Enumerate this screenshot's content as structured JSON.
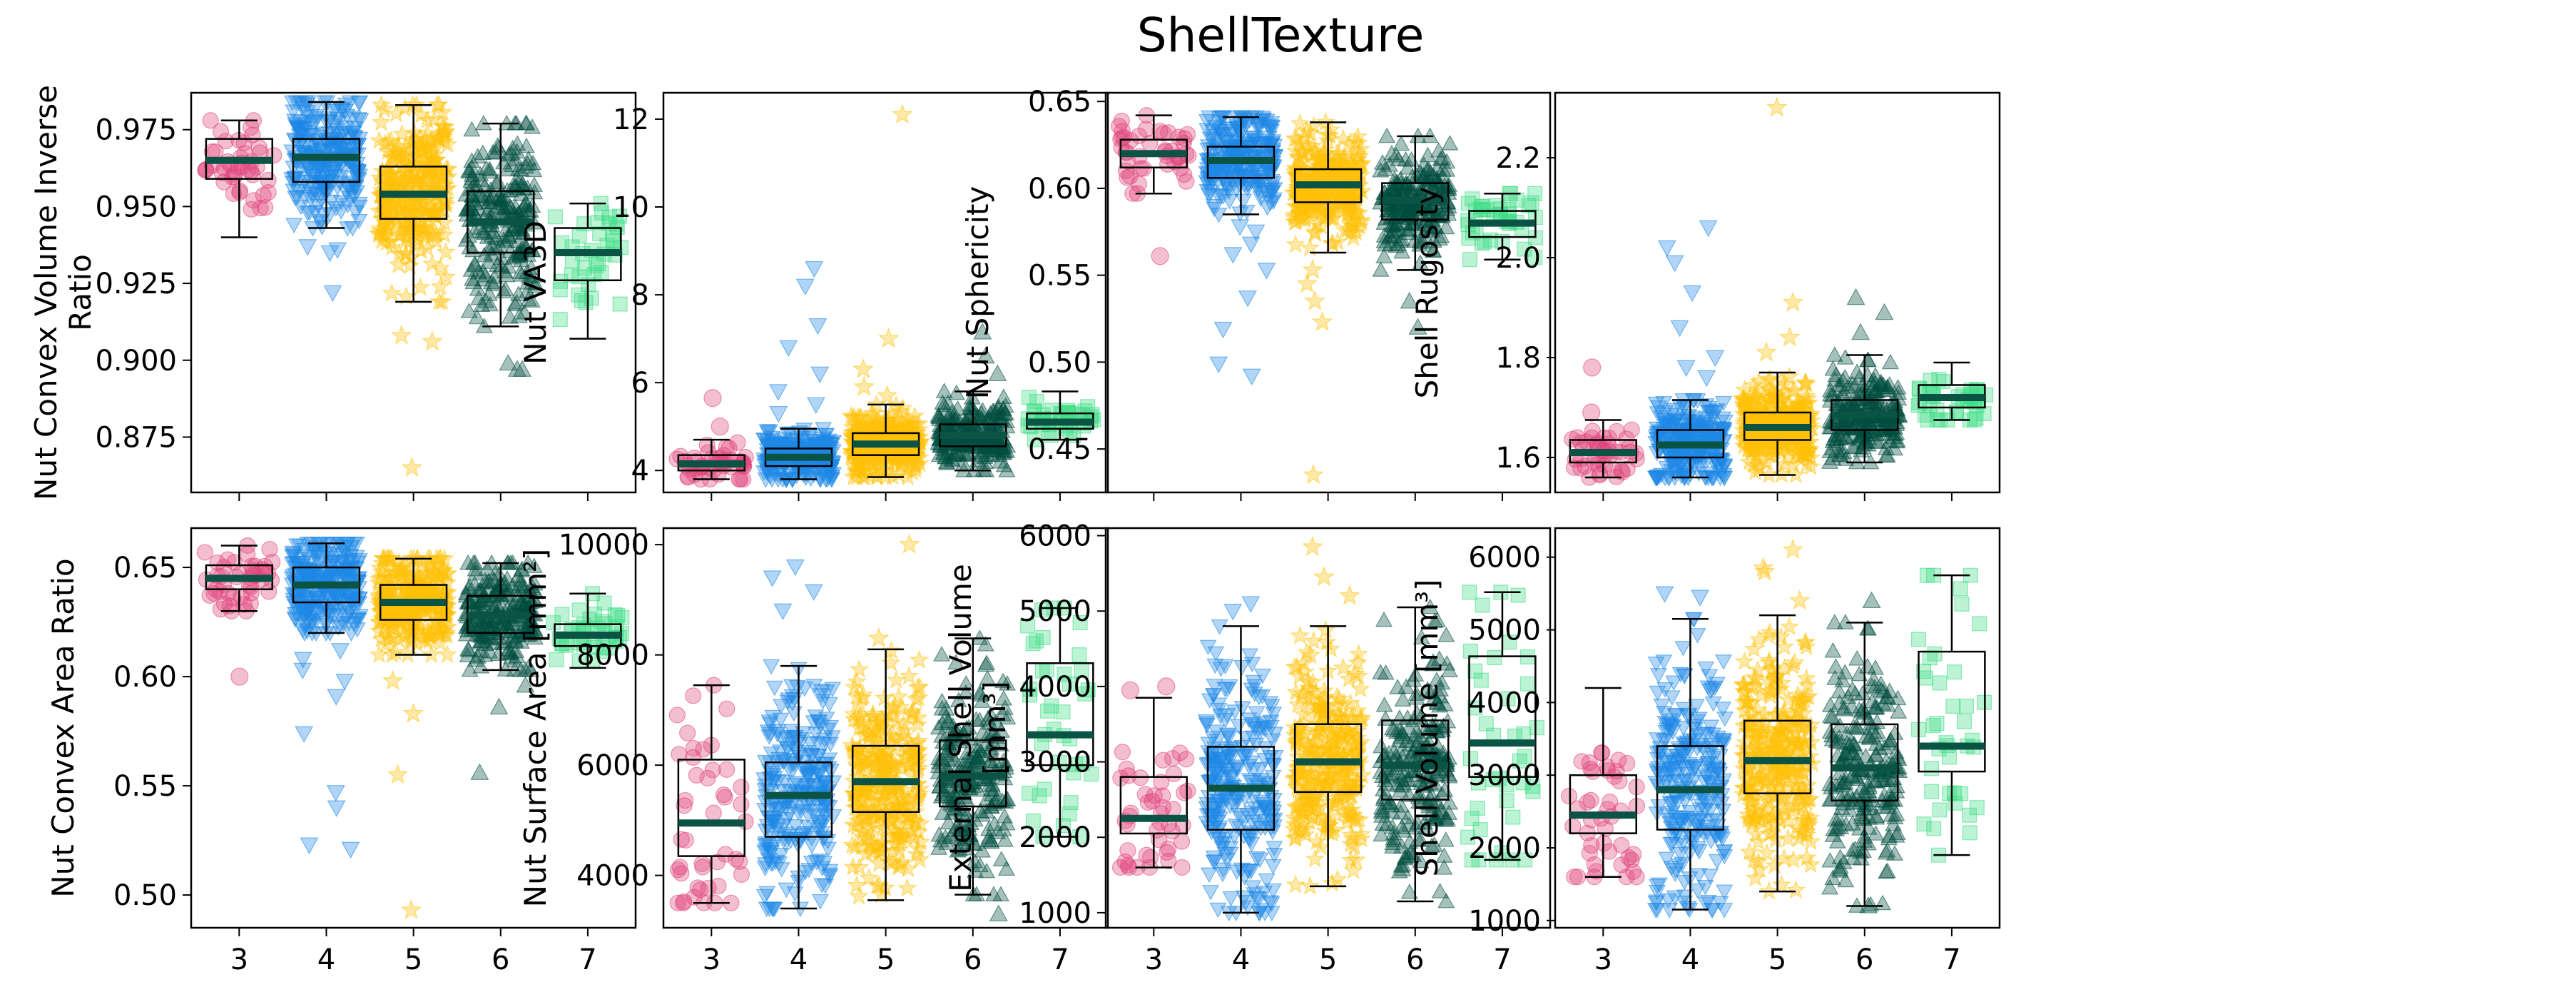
{
  "figure": {
    "title": "ShellTexture"
  },
  "palette": {
    "3": "#e0457b",
    "4": "#1e88e5",
    "5": "#ffc107",
    "6": "#004d40",
    "7": "#3ddc84",
    "median": "#0b5345"
  },
  "markers": {
    "3": "circle",
    "4": "triangle-down",
    "5": "star",
    "6": "triangle-up",
    "7": "square"
  },
  "chart_data": [
    {
      "type": "box",
      "panel": "r0c0",
      "ylabel": "Nut Convex Volume Inverse\nRatio",
      "categories": [
        "3",
        "4",
        "5",
        "6",
        "7"
      ],
      "ylim": [
        0.857,
        0.987
      ],
      "yticks": [
        0.875,
        0.9,
        0.925,
        0.95,
        0.975
      ],
      "ytick_labels": [
        "0.875",
        "0.900",
        "0.925",
        "0.950",
        "0.975"
      ],
      "show_xtick_labels": false,
      "boxes": [
        {
          "whislo": 0.94,
          "q1": 0.959,
          "med": 0.965,
          "q3": 0.972,
          "whishi": 0.978,
          "n": 45,
          "fliers": []
        },
        {
          "whislo": 0.943,
          "q1": 0.958,
          "med": 0.966,
          "q3": 0.972,
          "whishi": 0.984,
          "n": 260,
          "fliers": [
            0.937,
            0.935,
            0.922,
            0.936
          ]
        },
        {
          "whislo": 0.919,
          "q1": 0.946,
          "med": 0.954,
          "q3": 0.963,
          "whishi": 0.983,
          "n": 300,
          "fliers": [
            0.906,
            0.908,
            0.865
          ]
        },
        {
          "whislo": 0.911,
          "q1": 0.935,
          "med": 0.945,
          "q3": 0.955,
          "whishi": 0.977,
          "n": 230,
          "fliers": [
            0.897,
            0.897,
            0.899
          ]
        },
        {
          "whislo": 0.907,
          "q1": 0.926,
          "med": 0.935,
          "q3": 0.943,
          "whishi": 0.951,
          "n": 40,
          "fliers": []
        }
      ]
    },
    {
      "type": "box",
      "panel": "r0c1",
      "ylabel": "Nut VA3D",
      "categories": [
        "3",
        "4",
        "5",
        "6",
        "7"
      ],
      "ylim": [
        3.5,
        12.6
      ],
      "yticks": [
        4,
        6,
        8,
        10,
        12
      ],
      "ytick_labels": [
        "4",
        "6",
        "8",
        "10",
        "12"
      ],
      "show_xtick_labels": false,
      "boxes": [
        {
          "whislo": 3.8,
          "q1": 4.0,
          "med": 4.15,
          "q3": 4.35,
          "whishi": 4.7,
          "n": 45,
          "fliers": [
            5.65,
            5.0
          ]
        },
        {
          "whislo": 3.8,
          "q1": 4.1,
          "med": 4.3,
          "q3": 4.5,
          "whishi": 4.95,
          "n": 260,
          "fliers": [
            8.6,
            8.2,
            7.3,
            6.8,
            5.8,
            5.5,
            5.3,
            6.2
          ]
        },
        {
          "whislo": 3.85,
          "q1": 4.35,
          "med": 4.6,
          "q3": 4.85,
          "whishi": 5.5,
          "n": 300,
          "fliers": [
            12.1,
            7.0,
            6.3,
            5.9,
            5.7
          ]
        },
        {
          "whislo": 4.0,
          "q1": 4.55,
          "med": 4.8,
          "q3": 5.05,
          "whishi": 5.8,
          "n": 230,
          "fliers": [
            7.15,
            6.6,
            6.2
          ]
        },
        {
          "whislo": 4.7,
          "q1": 4.95,
          "med": 5.1,
          "q3": 5.3,
          "whishi": 5.8,
          "n": 40,
          "fliers": []
        }
      ]
    },
    {
      "type": "box",
      "panel": "r0c2",
      "ylabel": "Nut Sphericity",
      "categories": [
        "3",
        "4",
        "5",
        "6",
        "7"
      ],
      "ylim": [
        0.425,
        0.655
      ],
      "yticks": [
        0.45,
        0.5,
        0.55,
        0.6,
        0.65
      ],
      "ytick_labels": [
        "0.45",
        "0.50",
        "0.55",
        "0.60",
        "0.65"
      ],
      "show_xtick_labels": false,
      "boxes": [
        {
          "whislo": 0.597,
          "q1": 0.612,
          "med": 0.62,
          "q3": 0.628,
          "whishi": 0.642,
          "n": 45,
          "fliers": [
            0.561
          ]
        },
        {
          "whislo": 0.585,
          "q1": 0.606,
          "med": 0.616,
          "q3": 0.624,
          "whishi": 0.641,
          "n": 260,
          "fliers": [
            0.575,
            0.568,
            0.562,
            0.553,
            0.537,
            0.519,
            0.499,
            0.492,
            0.578
          ]
        },
        {
          "whislo": 0.563,
          "q1": 0.592,
          "med": 0.602,
          "q3": 0.611,
          "whishi": 0.638,
          "n": 300,
          "fliers": [
            0.553,
            0.545,
            0.535,
            0.523,
            0.435
          ]
        },
        {
          "whislo": 0.553,
          "q1": 0.582,
          "med": 0.593,
          "q3": 0.603,
          "whishi": 0.63,
          "n": 230,
          "fliers": [
            0.535,
            0.52
          ]
        },
        {
          "whislo": 0.559,
          "q1": 0.572,
          "med": 0.58,
          "q3": 0.587,
          "whishi": 0.597,
          "n": 40,
          "fliers": []
        }
      ]
    },
    {
      "type": "box",
      "panel": "r0c3",
      "ylabel": "Shell Rugosity",
      "categories": [
        "3",
        "4",
        "5",
        "6",
        "7"
      ],
      "ylim": [
        1.53,
        2.33
      ],
      "yticks": [
        1.6,
        1.8,
        2.0,
        2.2
      ],
      "ytick_labels": [
        "1.6",
        "1.8",
        "2.0",
        "2.2"
      ],
      "show_xtick_labels": false,
      "boxes": [
        {
          "whislo": 1.56,
          "q1": 1.59,
          "med": 1.61,
          "q3": 1.635,
          "whishi": 1.675,
          "n": 45,
          "fliers": [
            1.78,
            1.69
          ]
        },
        {
          "whislo": 1.56,
          "q1": 1.6,
          "med": 1.625,
          "q3": 1.655,
          "whishi": 1.715,
          "n": 260,
          "fliers": [
            2.06,
            2.02,
            1.99,
            1.93,
            1.86,
            1.8,
            1.76,
            1.78
          ]
        },
        {
          "whislo": 1.565,
          "q1": 1.635,
          "med": 1.66,
          "q3": 1.69,
          "whishi": 1.77,
          "n": 300,
          "fliers": [
            2.3,
            1.91,
            1.84,
            1.81
          ]
        },
        {
          "whislo": 1.59,
          "q1": 1.655,
          "med": 1.685,
          "q3": 1.715,
          "whishi": 1.805,
          "n": 230,
          "fliers": [
            1.92,
            1.89,
            1.85
          ]
        },
        {
          "whislo": 1.675,
          "q1": 1.7,
          "med": 1.72,
          "q3": 1.745,
          "whishi": 1.79,
          "n": 40,
          "fliers": []
        }
      ]
    },
    {
      "type": "box",
      "panel": "r1c0",
      "ylabel": "Nut Convex Area Ratio",
      "categories": [
        "3",
        "4",
        "5",
        "6",
        "7"
      ],
      "ylim": [
        0.485,
        0.668
      ],
      "yticks": [
        0.5,
        0.55,
        0.6,
        0.65
      ],
      "ytick_labels": [
        "0.50",
        "0.55",
        "0.60",
        "0.65"
      ],
      "show_xtick_labels": true,
      "boxes": [
        {
          "whislo": 0.63,
          "q1": 0.64,
          "med": 0.645,
          "q3": 0.651,
          "whishi": 0.66,
          "n": 45,
          "fliers": [
            0.6
          ]
        },
        {
          "whislo": 0.62,
          "q1": 0.634,
          "med": 0.642,
          "q3": 0.65,
          "whishi": 0.661,
          "n": 260,
          "fliers": [
            0.612,
            0.608,
            0.603,
            0.598,
            0.591,
            0.574,
            0.547,
            0.54,
            0.523,
            0.521
          ]
        },
        {
          "whislo": 0.61,
          "q1": 0.626,
          "med": 0.634,
          "q3": 0.642,
          "whishi": 0.654,
          "n": 300,
          "fliers": [
            0.598,
            0.583,
            0.555,
            0.493
          ]
        },
        {
          "whislo": 0.603,
          "q1": 0.62,
          "med": 0.628,
          "q3": 0.637,
          "whishi": 0.652,
          "n": 230,
          "fliers": [
            0.596,
            0.586,
            0.556
          ]
        },
        {
          "whislo": 0.604,
          "q1": 0.614,
          "med": 0.619,
          "q3": 0.624,
          "whishi": 0.638,
          "n": 40,
          "fliers": []
        }
      ]
    },
    {
      "type": "box",
      "panel": "r1c1",
      "ylabel": "Nut Surface Area [mm²]",
      "categories": [
        "3",
        "4",
        "5",
        "6",
        "7"
      ],
      "ylim": [
        3050,
        10300
      ],
      "yticks": [
        4000,
        6000,
        8000,
        10000
      ],
      "ytick_labels": [
        "4000",
        "6000",
        "8000",
        "10000"
      ],
      "show_xtick_labels": true,
      "boxes": [
        {
          "whislo": 3500,
          "q1": 4350,
          "med": 4950,
          "q3": 6100,
          "whishi": 7450,
          "n": 45,
          "fliers": []
        },
        {
          "whislo": 3400,
          "q1": 4700,
          "med": 5450,
          "q3": 6050,
          "whishi": 7800,
          "n": 260,
          "fliers": [
            9600,
            9400,
            9150,
            8800
          ]
        },
        {
          "whislo": 3550,
          "q1": 5150,
          "med": 5700,
          "q3": 6350,
          "whishi": 8100,
          "n": 300,
          "fliers": [
            10000,
            8300
          ]
        },
        {
          "whislo": 3650,
          "q1": 5250,
          "med": 5800,
          "q3": 6450,
          "whishi": 8300,
          "n": 230,
          "fliers": [
            3300
          ]
        },
        {
          "whislo": 4700,
          "q1": 6000,
          "med": 6550,
          "q3": 7850,
          "whishi": 8850,
          "n": 40,
          "fliers": []
        }
      ]
    },
    {
      "type": "box",
      "panel": "r1c2",
      "ylabel": "External Shell Volume\n[mm³]",
      "categories": [
        "3",
        "4",
        "5",
        "6",
        "7"
      ],
      "ylim": [
        800,
        6100
      ],
      "yticks": [
        1000,
        2000,
        3000,
        4000,
        5000,
        6000
      ],
      "ytick_labels": [
        "1000",
        "2000",
        "3000",
        "4000",
        "5000",
        "6000"
      ],
      "show_xtick_labels": true,
      "boxes": [
        {
          "whislo": 1600,
          "q1": 2050,
          "med": 2250,
          "q3": 2800,
          "whishi": 3850,
          "n": 45,
          "fliers": [
            4000,
            3950
          ]
        },
        {
          "whislo": 1000,
          "q1": 2100,
          "med": 2650,
          "q3": 3200,
          "whishi": 4800,
          "n": 260,
          "fliers": [
            5100,
            5000
          ]
        },
        {
          "whislo": 1350,
          "q1": 2600,
          "med": 3000,
          "q3": 3500,
          "whishi": 4800,
          "n": 300,
          "fliers": [
            5850,
            5450,
            5200
          ]
        },
        {
          "whislo": 1150,
          "q1": 2500,
          "med": 2950,
          "q3": 3550,
          "whishi": 5050,
          "n": 230,
          "fliers": []
        },
        {
          "whislo": 1700,
          "q1": 2800,
          "med": 3250,
          "q3": 4400,
          "whishi": 5250,
          "n": 40,
          "fliers": []
        }
      ]
    },
    {
      "type": "box",
      "panel": "r1c3",
      "ylabel": "Shell Volume [mm³]",
      "categories": [
        "3",
        "4",
        "5",
        "6",
        "7"
      ],
      "ylim": [
        900,
        6400
      ],
      "yticks": [
        1000,
        2000,
        3000,
        4000,
        5000,
        6000
      ],
      "ytick_labels": [
        "1000",
        "2000",
        "3000",
        "4000",
        "5000",
        "6000"
      ],
      "show_xtick_labels": true,
      "boxes": [
        {
          "whislo": 1600,
          "q1": 2200,
          "med": 2450,
          "q3": 3000,
          "whishi": 4200,
          "n": 45,
          "fliers": []
        },
        {
          "whislo": 1150,
          "q1": 2250,
          "med": 2800,
          "q3": 3400,
          "whishi": 5150,
          "n": 260,
          "fliers": [
            5500,
            5450
          ]
        },
        {
          "whislo": 1400,
          "q1": 2750,
          "med": 3200,
          "q3": 3750,
          "whishi": 5200,
          "n": 300,
          "fliers": [
            6100,
            5850,
            5800,
            5400
          ]
        },
        {
          "whislo": 1200,
          "q1": 2650,
          "med": 3100,
          "q3": 3700,
          "whishi": 5100,
          "n": 230,
          "fliers": [
            5400,
            1200
          ]
        },
        {
          "whislo": 1900,
          "q1": 3050,
          "med": 3400,
          "q3": 4700,
          "whishi": 5750,
          "n": 40,
          "fliers": []
        }
      ]
    }
  ]
}
